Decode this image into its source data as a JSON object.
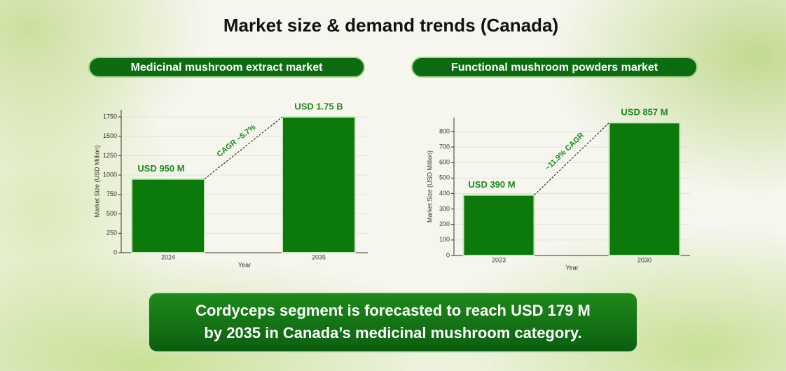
{
  "title": "Market size & demand trends (Canada)",
  "chart_data": [
    {
      "type": "bar",
      "title": "Medicinal mushroom extract market",
      "categories": [
        "2024",
        "2035"
      ],
      "values": [
        950,
        1750
      ],
      "value_labels": [
        "USD 950 M",
        "USD 1.75 B"
      ],
      "xlabel": "Year",
      "ylabel": "Market Size (USD Million)",
      "annotation": "CAGR ~5.7%",
      "ylim": [
        0,
        1840
      ],
      "yticks": [
        0,
        250,
        500,
        750,
        1000,
        1250,
        1500,
        1750
      ],
      "grid": true,
      "color": "#0b7a0b"
    },
    {
      "type": "bar",
      "title": "Functional mushroom powders market",
      "categories": [
        "2023",
        "2030"
      ],
      "values": [
        390,
        857
      ],
      "value_labels": [
        "USD 390 M",
        "USD 857 M"
      ],
      "xlabel": "Year",
      "ylabel": "Market Size (USD Million)",
      "annotation": "~11.9% CAGR",
      "ylim": [
        0,
        890
      ],
      "yticks": [
        0,
        100,
        200,
        300,
        400,
        500,
        600,
        700,
        800
      ],
      "grid": true,
      "color": "#0b7a0b"
    }
  ],
  "callout": [
    "Cordyceps segment is forecasted to reach USD 179 M",
    "by 2035 in Canada’s medicinal mushroom category."
  ]
}
